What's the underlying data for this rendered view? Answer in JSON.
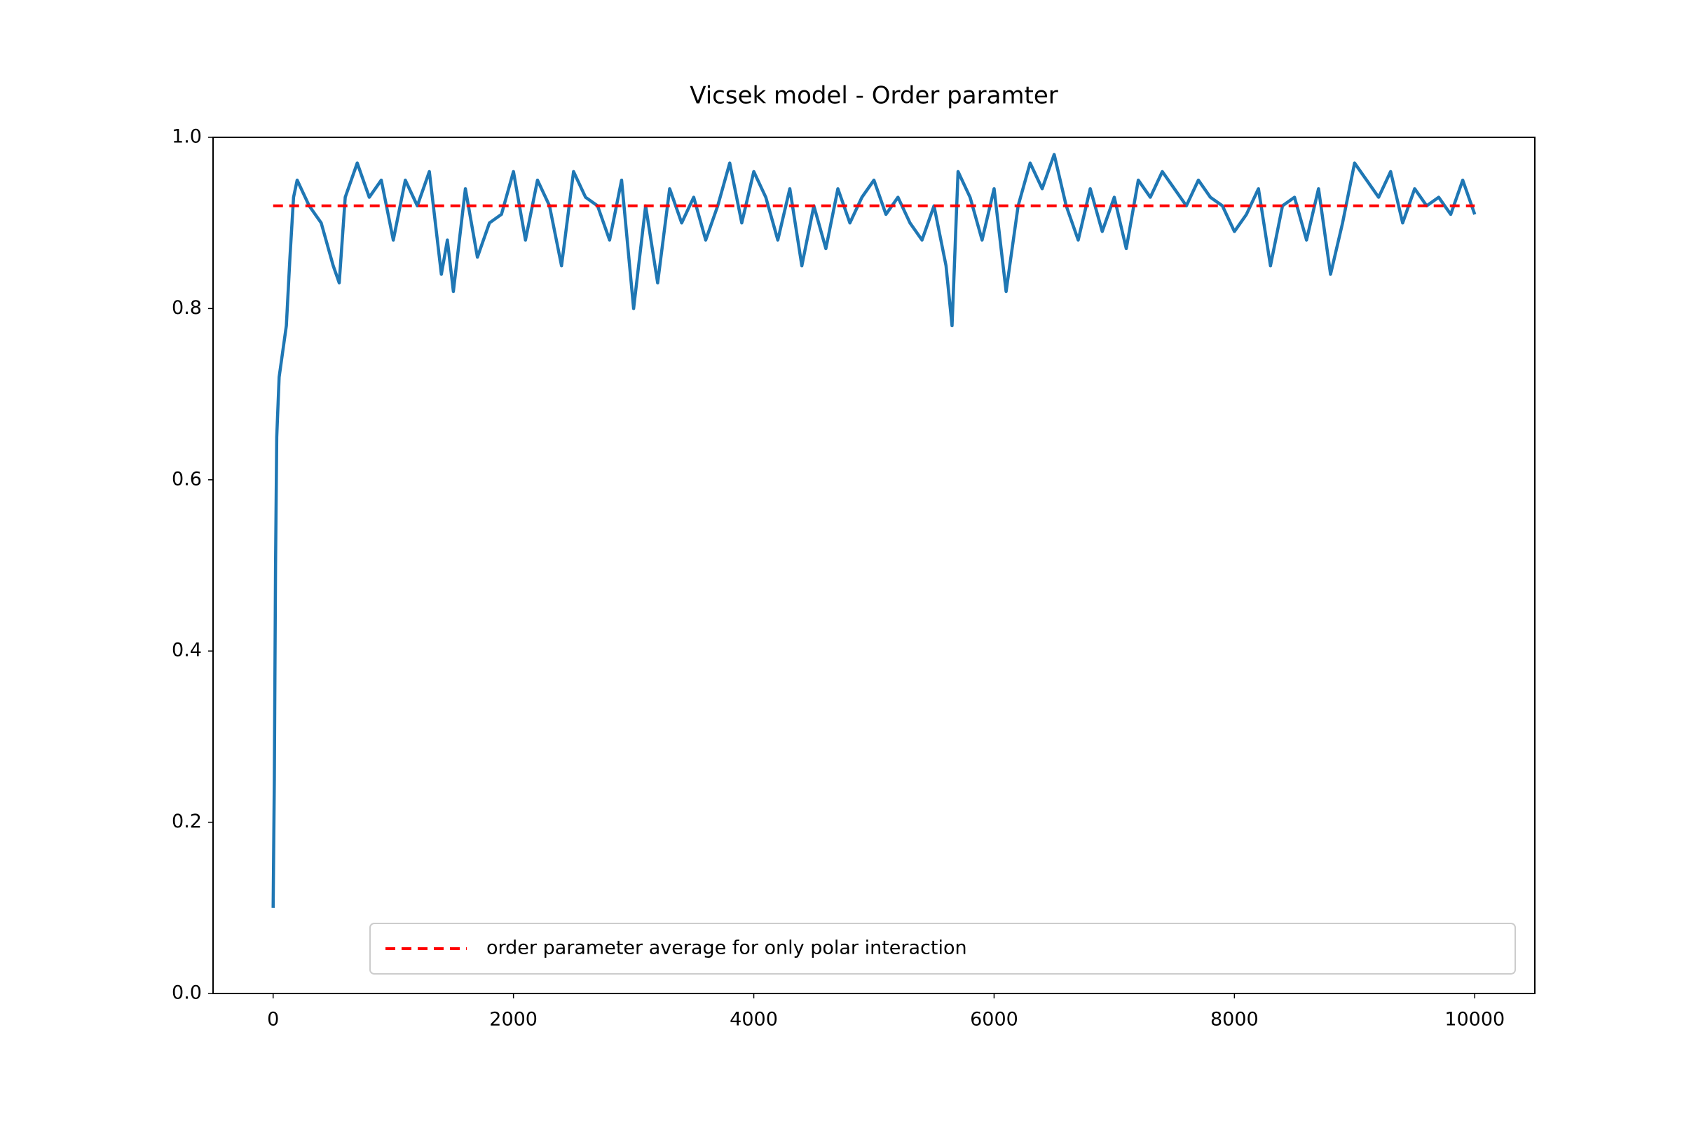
{
  "chart_data": {
    "type": "line",
    "title": "Vicsek model - Order paramter",
    "xlim": [
      -500,
      10500
    ],
    "xticks": [
      0,
      2000,
      4000,
      6000,
      8000,
      10000
    ],
    "ylim": [
      0,
      1
    ],
    "yticks": [
      {
        "value": 0,
        "label": "0.0"
      },
      0.2,
      0.4,
      0.6,
      0.8,
      {
        "value": 1,
        "label": "1.0"
      }
    ],
    "legend": "lower right",
    "series": [
      {
        "color": "#1f77b4",
        "dash": false,
        "x": [
          0,
          10,
          20,
          30,
          50,
          80,
          110,
          140,
          170,
          200,
          300,
          400,
          500,
          550,
          600,
          700,
          800,
          900,
          1000,
          1100,
          1200,
          1300,
          1400,
          1450,
          1500,
          1600,
          1700,
          1800,
          1900,
          2000,
          2100,
          2200,
          2300,
          2400,
          2500,
          2600,
          2700,
          2800,
          2900,
          3000,
          3100,
          3200,
          3300,
          3400,
          3500,
          3600,
          3700,
          3800,
          3900,
          4000,
          4100,
          4200,
          4300,
          4400,
          4500,
          4600,
          4700,
          4800,
          4900,
          5000,
          5100,
          5200,
          5300,
          5400,
          5500,
          5600,
          5650,
          5700,
          5800,
          5900,
          6000,
          6100,
          6200,
          6300,
          6400,
          6500,
          6600,
          6700,
          6800,
          6900,
          7000,
          7100,
          7200,
          7300,
          7400,
          7500,
          7600,
          7700,
          7800,
          7900,
          8000,
          8100,
          8200,
          8300,
          8400,
          8500,
          8600,
          8700,
          8800,
          8900,
          9000,
          9100,
          9200,
          9300,
          9400,
          9500,
          9600,
          9700,
          9800,
          9900,
          10000
        ],
        "values": [
          0.1,
          0.25,
          0.5,
          0.65,
          0.72,
          0.75,
          0.78,
          0.86,
          0.93,
          0.95,
          0.92,
          0.9,
          0.85,
          0.83,
          0.93,
          0.97,
          0.93,
          0.95,
          0.88,
          0.95,
          0.92,
          0.96,
          0.84,
          0.88,
          0.82,
          0.94,
          0.86,
          0.9,
          0.91,
          0.96,
          0.88,
          0.95,
          0.92,
          0.85,
          0.96,
          0.93,
          0.92,
          0.88,
          0.95,
          0.8,
          0.92,
          0.83,
          0.94,
          0.9,
          0.93,
          0.88,
          0.92,
          0.97,
          0.9,
          0.96,
          0.93,
          0.88,
          0.94,
          0.85,
          0.92,
          0.87,
          0.94,
          0.9,
          0.93,
          0.95,
          0.91,
          0.93,
          0.9,
          0.88,
          0.92,
          0.85,
          0.78,
          0.96,
          0.93,
          0.88,
          0.94,
          0.82,
          0.92,
          0.97,
          0.94,
          0.98,
          0.92,
          0.88,
          0.94,
          0.89,
          0.93,
          0.87,
          0.95,
          0.93,
          0.96,
          0.94,
          0.92,
          0.95,
          0.93,
          0.92,
          0.89,
          0.91,
          0.94,
          0.85,
          0.92,
          0.93,
          0.88,
          0.94,
          0.84,
          0.9,
          0.97,
          0.95,
          0.93,
          0.96,
          0.9,
          0.94,
          0.92,
          0.93,
          0.91,
          0.95,
          0.91
        ]
      },
      {
        "name": "order parameter average for only polar interaction",
        "color": "#ff0000",
        "dash": true,
        "x": [
          0,
          10000
        ],
        "values": [
          0.92,
          0.92
        ]
      }
    ]
  }
}
